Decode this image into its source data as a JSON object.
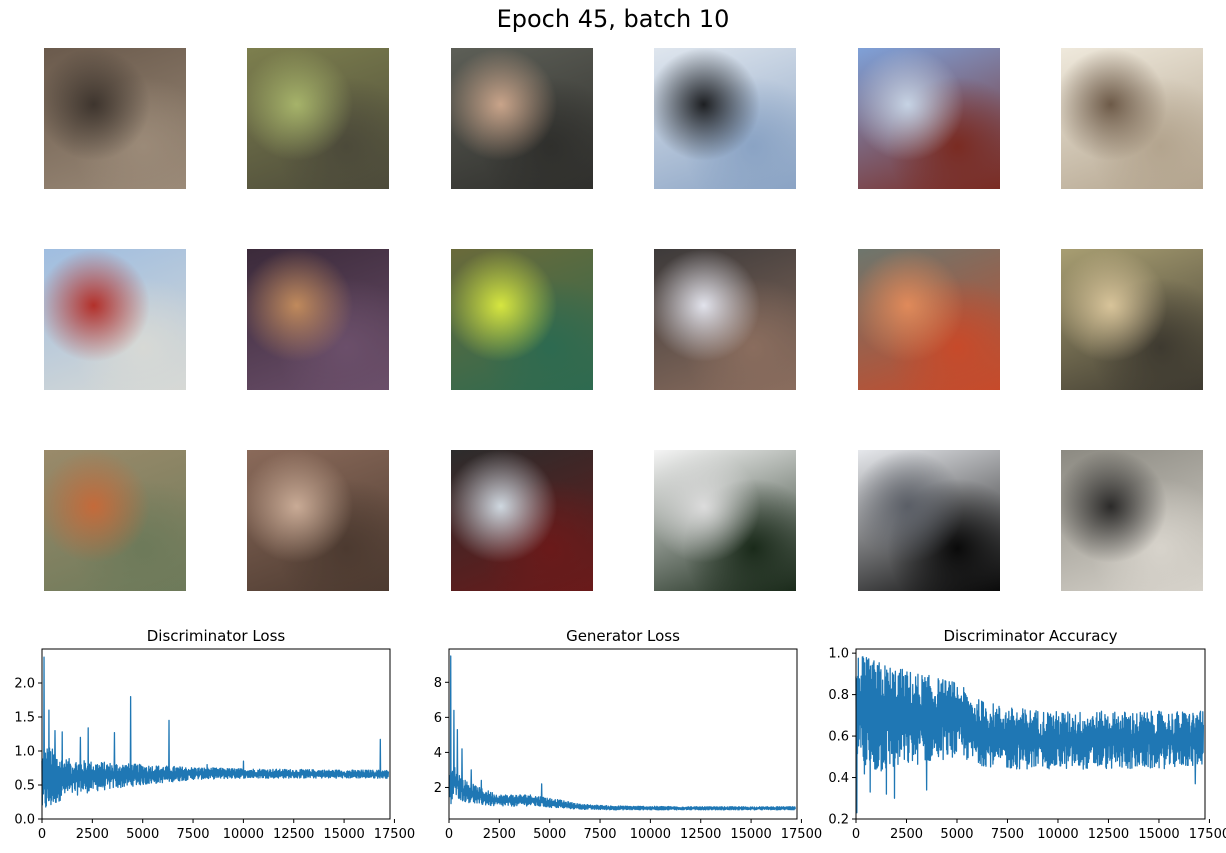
{
  "figure": {
    "title": "Epoch 45, batch 10"
  },
  "samples": [
    {
      "row": 0,
      "col": 0,
      "colors": [
        "#6a5a4c",
        "#3e352e",
        "#9b8a78"
      ]
    },
    {
      "row": 0,
      "col": 1,
      "colors": [
        "#7d7f4e",
        "#a6b36a",
        "#4c4a3a"
      ]
    },
    {
      "row": 0,
      "col": 2,
      "colors": [
        "#5d5f57",
        "#c9a48a",
        "#2f2f2c"
      ]
    },
    {
      "row": 0,
      "col": 3,
      "colors": [
        "#dfe6ee",
        "#1d1f22",
        "#8aa3c4"
      ]
    },
    {
      "row": 0,
      "col": 4,
      "colors": [
        "#7fa1d8",
        "#c6d3e4",
        "#7a2b22"
      ]
    },
    {
      "row": 0,
      "col": 5,
      "colors": [
        "#efe9dc",
        "#6d5a48",
        "#b3a48e"
      ]
    },
    {
      "row": 1,
      "col": 0,
      "colors": [
        "#9fbde0",
        "#b3302a",
        "#d7d9d5"
      ]
    },
    {
      "row": 1,
      "col": 1,
      "colors": [
        "#3b2a3a",
        "#c08a5c",
        "#6b4f6a"
      ]
    },
    {
      "row": 1,
      "col": 2,
      "colors": [
        "#6a6a3a",
        "#d6e640",
        "#2d6a50"
      ]
    },
    {
      "row": 1,
      "col": 3,
      "colors": [
        "#3d3a3a",
        "#e2e3ec",
        "#8a6d5e"
      ]
    },
    {
      "row": 1,
      "col": 4,
      "colors": [
        "#6d766d",
        "#e08a5a",
        "#c74a2a"
      ]
    },
    {
      "row": 1,
      "col": 5,
      "colors": [
        "#a89e72",
        "#d8c49a",
        "#3e3a30"
      ]
    },
    {
      "row": 2,
      "col": 0,
      "colors": [
        "#9a8a6a",
        "#c46a3a",
        "#6d7a5a"
      ]
    },
    {
      "row": 2,
      "col": 1,
      "colors": [
        "#8a6a5a",
        "#c9ab96",
        "#4c3a30"
      ]
    },
    {
      "row": 2,
      "col": 2,
      "colors": [
        "#2c2c2c",
        "#cfd8e0",
        "#6a1a1a"
      ]
    },
    {
      "row": 2,
      "col": 3,
      "colors": [
        "#f5f5f5",
        "#dcdcdc",
        "#1a2a1a"
      ]
    },
    {
      "row": 2,
      "col": 4,
      "colors": [
        "#e6e8ec",
        "#5a5e66",
        "#0a0a0a"
      ]
    },
    {
      "row": 2,
      "col": 5,
      "colors": [
        "#8c8a82",
        "#2b2a29",
        "#d7d3cb"
      ]
    }
  ],
  "chart_data": [
    {
      "type": "line",
      "title": "Discriminator Loss",
      "xlim": [
        0,
        17280
      ],
      "ylim": [
        0,
        2.5
      ],
      "xticks": [
        0,
        2500,
        5000,
        7500,
        10000,
        12500,
        15000,
        17500
      ],
      "yticks": [
        0.0,
        0.5,
        1.0,
        1.5,
        2.0
      ],
      "ytick_labels": [
        "0.0",
        "0.5",
        "1.0",
        "1.5",
        "2.0"
      ],
      "color": "#1f77b4",
      "envelope": {
        "x": [
          0,
          300,
          1000,
          2500,
          5000,
          7500,
          10000,
          12500,
          15000,
          17200
        ],
        "lo": [
          0.08,
          0.1,
          0.3,
          0.4,
          0.5,
          0.58,
          0.6,
          0.6,
          0.6,
          0.6
        ],
        "hi": [
          1.0,
          1.1,
          0.9,
          0.85,
          0.8,
          0.76,
          0.74,
          0.73,
          0.72,
          0.72
        ]
      },
      "spikes": [
        [
          100,
          2.38
        ],
        [
          350,
          1.6
        ],
        [
          650,
          1.3
        ],
        [
          1000,
          1.28
        ],
        [
          1900,
          1.2
        ],
        [
          2300,
          1.34
        ],
        [
          3600,
          1.27
        ],
        [
          4400,
          1.8
        ],
        [
          6300,
          1.45
        ],
        [
          8200,
          0.8
        ],
        [
          10000,
          0.85
        ],
        [
          16800,
          1.17
        ]
      ]
    },
    {
      "type": "line",
      "title": "Generator Loss",
      "xlim": [
        0,
        17280
      ],
      "ylim": [
        0.2,
        9.9
      ],
      "xticks": [
        0,
        2500,
        5000,
        7500,
        10000,
        12500,
        15000,
        17500
      ],
      "yticks": [
        2,
        4,
        6,
        8
      ],
      "ytick_labels": [
        "2",
        "4",
        "6",
        "8"
      ],
      "color": "#1f77b4",
      "envelope": {
        "x": [
          0,
          300,
          700,
          1500,
          2500,
          4000,
          5000,
          6500,
          8000,
          12000,
          17200
        ],
        "lo": [
          0.6,
          1.5,
          1.2,
          1.0,
          0.9,
          0.95,
          0.85,
          0.75,
          0.72,
          0.72,
          0.72
        ],
        "hi": [
          3.0,
          3.2,
          2.5,
          2.0,
          1.6,
          1.6,
          1.4,
          1.05,
          0.95,
          0.9,
          0.9
        ]
      },
      "spikes": [
        [
          80,
          9.5
        ],
        [
          250,
          6.4
        ],
        [
          420,
          5.3
        ],
        [
          650,
          4.2
        ],
        [
          1100,
          3.0
        ],
        [
          1600,
          2.4
        ],
        [
          4600,
          2.2
        ]
      ]
    },
    {
      "type": "line",
      "title": "Discriminator Accuracy",
      "xlim": [
        0,
        17280
      ],
      "ylim": [
        0.2,
        1.02
      ],
      "xticks": [
        0,
        2500,
        5000,
        7500,
        10000,
        12500,
        15000,
        17500
      ],
      "yticks": [
        0.2,
        0.4,
        0.6,
        0.8,
        1.0
      ],
      "ytick_labels": [
        "0.2",
        "0.4",
        "0.6",
        "0.8",
        "1.0"
      ],
      "color": "#1f77b4",
      "envelope": {
        "x": [
          0,
          500,
          2500,
          5000,
          6000,
          7500,
          10000,
          12500,
          15000,
          17200
        ],
        "lo": [
          0.5,
          0.4,
          0.45,
          0.5,
          0.46,
          0.44,
          0.44,
          0.44,
          0.44,
          0.46
        ],
        "hi": [
          1.0,
          0.98,
          0.92,
          0.86,
          0.78,
          0.74,
          0.72,
          0.72,
          0.72,
          0.72
        ]
      },
      "spikes": [
        [
          50,
          0.23
        ],
        [
          700,
          0.33
        ],
        [
          1500,
          0.32
        ],
        [
          1900,
          0.3
        ],
        [
          3500,
          0.34
        ],
        [
          16800,
          0.37
        ]
      ]
    }
  ]
}
